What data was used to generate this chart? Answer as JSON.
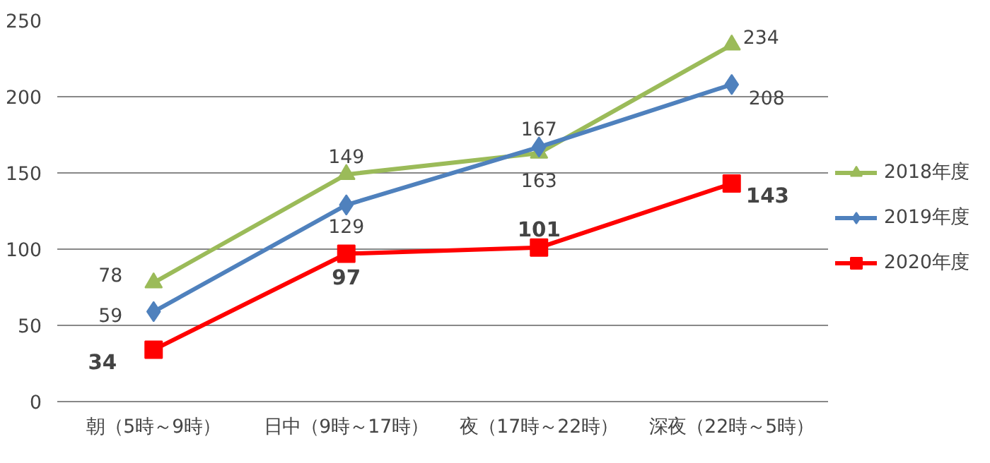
{
  "chart_data": {
    "type": "line",
    "categories": [
      "朝（5時～9時）",
      "日中（9時～17時）",
      "夜（17時～22時）",
      "深夜（22時～5時）"
    ],
    "series": [
      {
        "name": "2018年度",
        "color": "#9bbb59",
        "marker": "triangle",
        "values": [
          78,
          149,
          163,
          234
        ]
      },
      {
        "name": "2019年度",
        "color": "#4f81bd",
        "marker": "diamond",
        "values": [
          59,
          129,
          167,
          208
        ]
      },
      {
        "name": "2020年度",
        "color": "#ff0000",
        "marker": "square",
        "values": [
          34,
          97,
          101,
          143
        ]
      }
    ],
    "ylim": [
      0,
      250
    ],
    "yticks": [
      0,
      50,
      100,
      150,
      200,
      250
    ],
    "grid": "y",
    "legend": "right",
    "data_labels": true,
    "line_style": "solid"
  }
}
